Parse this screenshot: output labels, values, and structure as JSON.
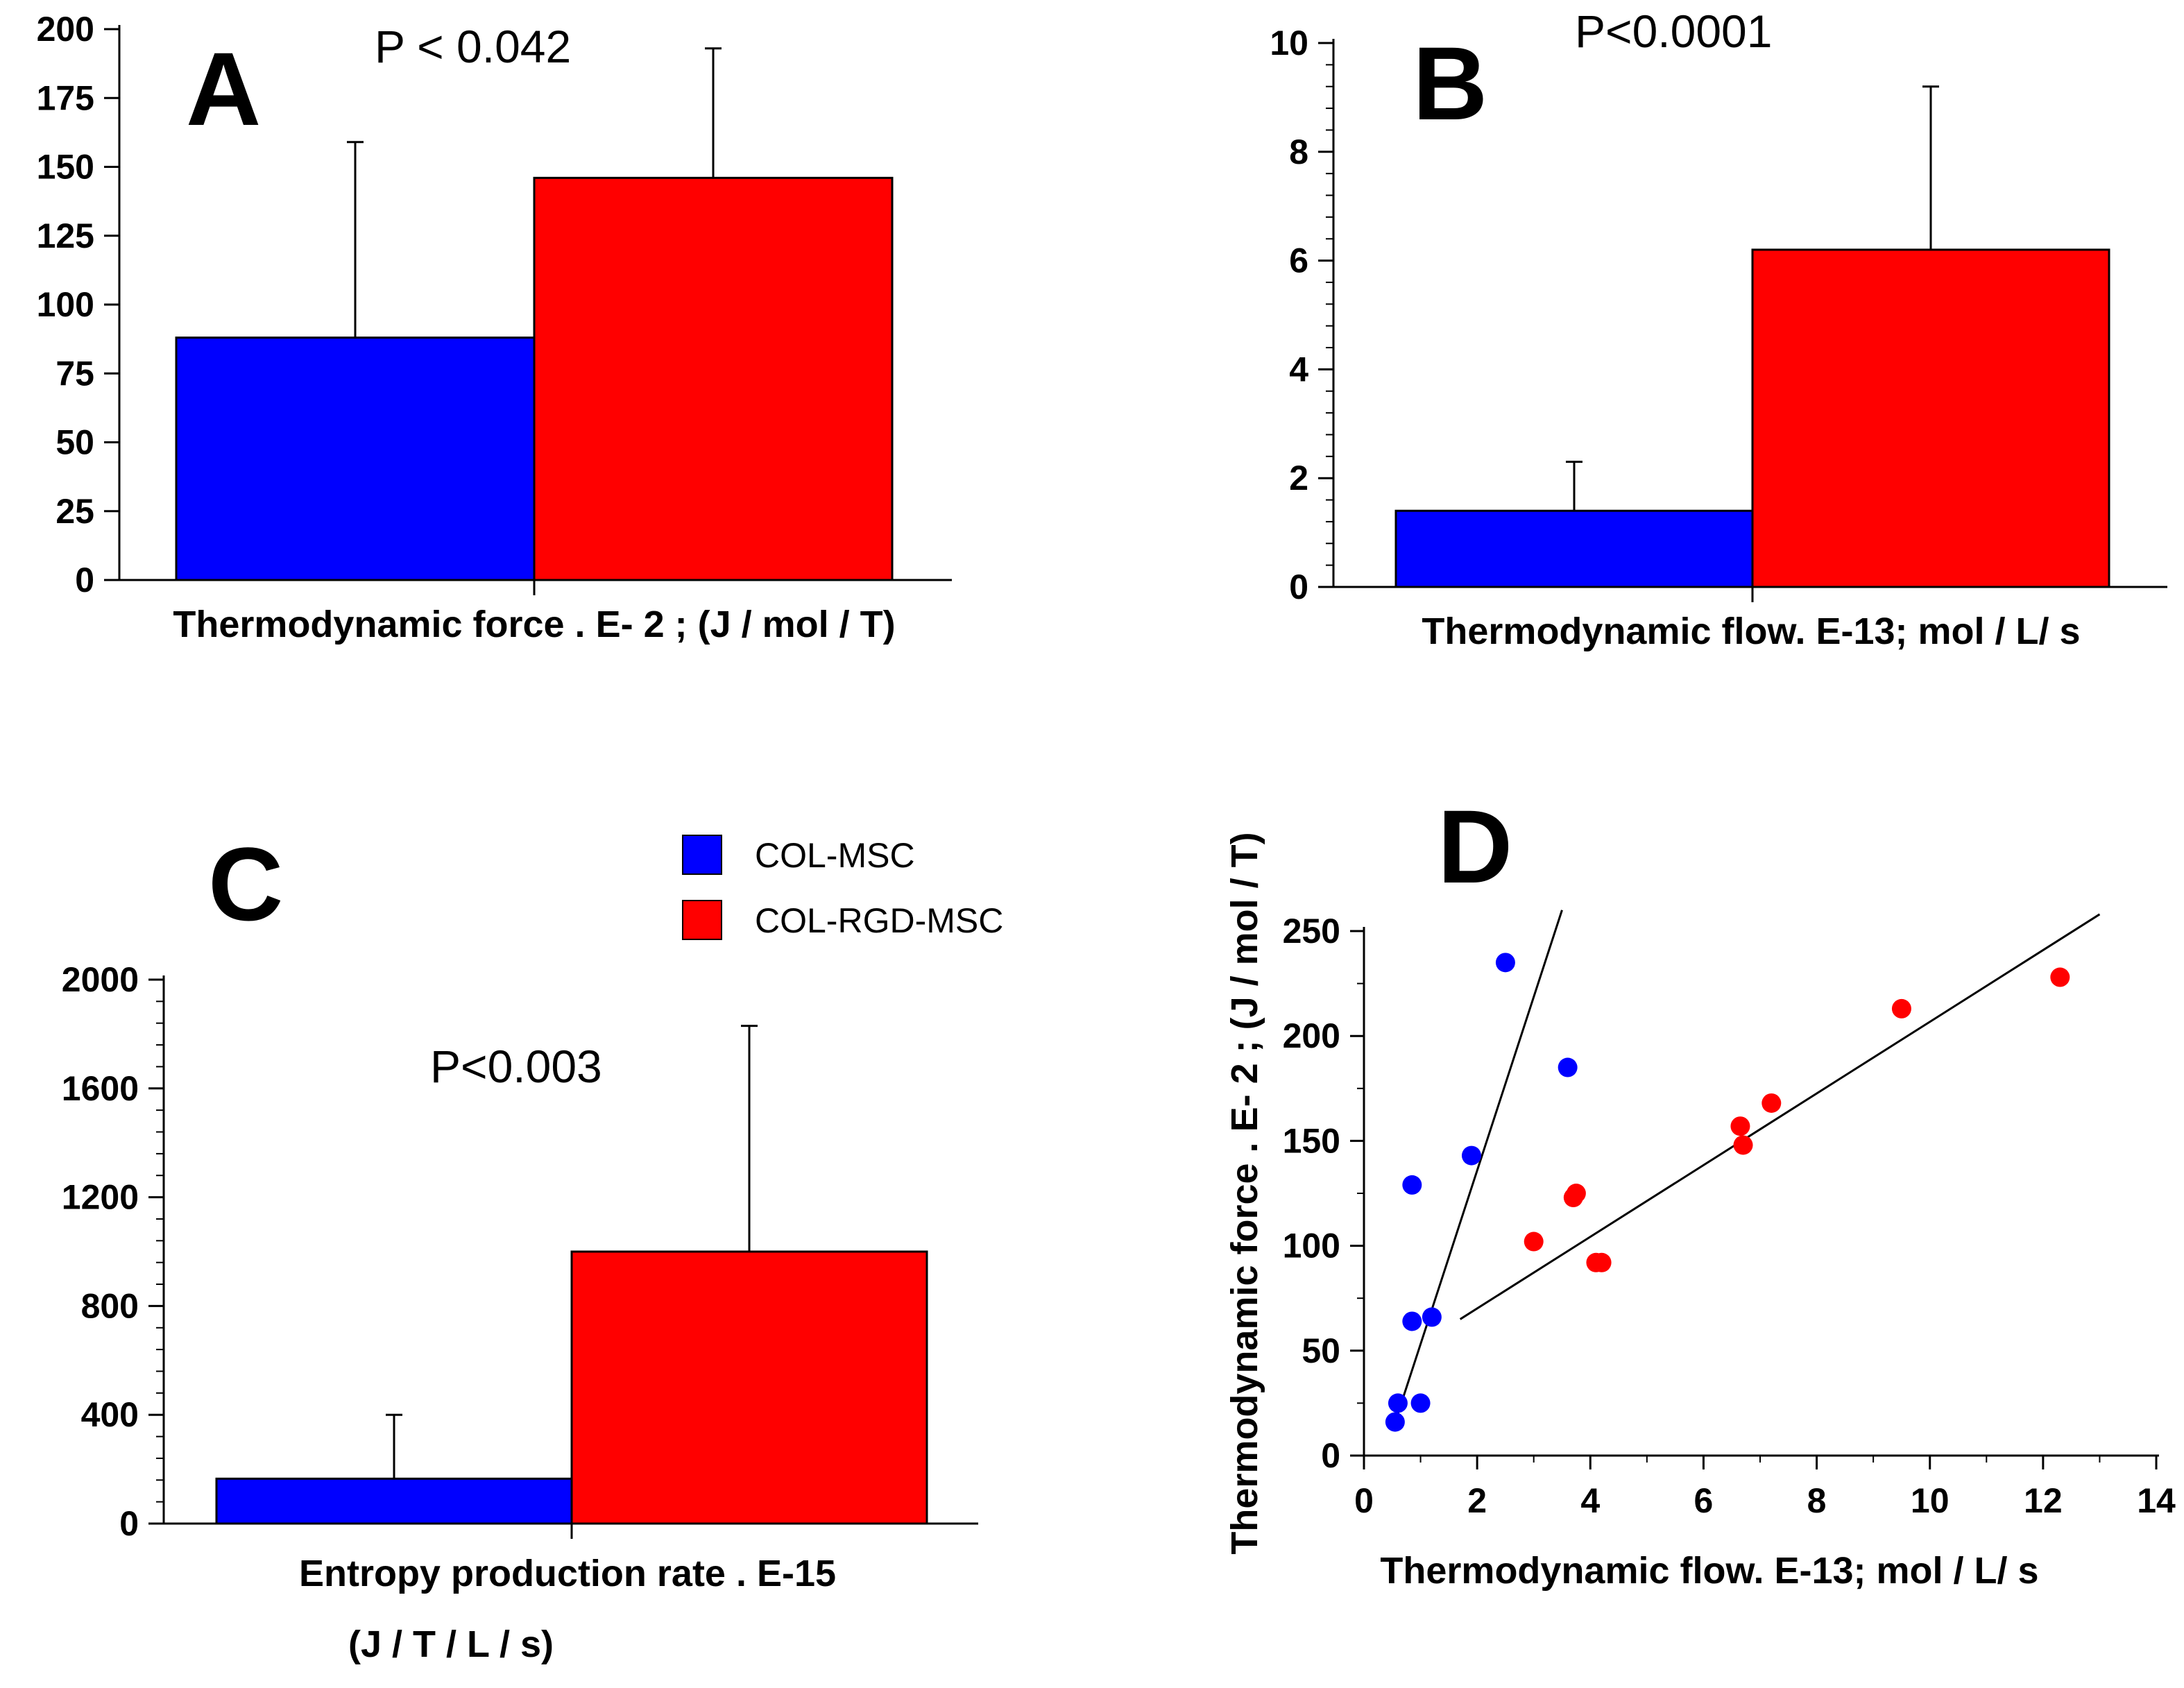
{
  "colors": {
    "col_msc": "#0000ff",
    "col_rgd_msc": "#ff0000",
    "axis": "#000000"
  },
  "legend": [
    {
      "label": "COL-MSC",
      "color": "#0000ff"
    },
    {
      "label": "COL-RGD-MSC",
      "color": "#ff0000"
    }
  ],
  "chart_data": [
    {
      "panel": "A",
      "type": "bar",
      "pvalue": "P < 0.042",
      "xlabel": "Thermodynamic force . E- 2 ; (J / mol / T)",
      "ylim": [
        0,
        200
      ],
      "yticks": [
        0,
        25,
        50,
        75,
        100,
        125,
        150,
        175,
        200
      ],
      "ytick_labels": [
        "0",
        "25",
        "50",
        "75",
        "100",
        "125",
        "150",
        "175",
        "200"
      ],
      "series": [
        {
          "name": "COL-MSC",
          "value": 88,
          "error": 71
        },
        {
          "name": "COL-RGD-MSC",
          "value": 146,
          "error": 47
        }
      ]
    },
    {
      "panel": "B",
      "type": "bar",
      "pvalue": "P<0.0001",
      "xlabel": "Thermodynamic flow. E-13; mol / L/ s",
      "ylim": [
        0,
        10
      ],
      "yticks": [
        0,
        2,
        4,
        6,
        8,
        10
      ],
      "ytick_labels": [
        "0",
        "2",
        "4",
        "6",
        "8",
        "10"
      ],
      "series": [
        {
          "name": "COL-MSC",
          "value": 1.4,
          "error": 0.9
        },
        {
          "name": "COL-RGD-MSC",
          "value": 6.2,
          "error": 3.0
        }
      ]
    },
    {
      "panel": "C",
      "type": "bar",
      "pvalue": "P<0.003",
      "xlabel": "Entropy production rate . E-15",
      "xlabel2": "(J / T / L / s)",
      "ylim": [
        0,
        2000
      ],
      "yticks": [
        0,
        400,
        800,
        1200,
        1600,
        2000
      ],
      "ytick_labels": [
        "0",
        "400",
        "800",
        "1200",
        "1600",
        "2000"
      ],
      "series": [
        {
          "name": "COL-MSC",
          "value": 165,
          "error": 235
        },
        {
          "name": "COL-RGD-MSC",
          "value": 1000,
          "error": 830
        }
      ]
    },
    {
      "panel": "D",
      "type": "scatter",
      "xlabel": "Thermodynamic flow. E-13; mol / L/ s",
      "ylabel": "Thermodynamic force . E- 2 ; (J / mol / T)",
      "xlim": [
        0,
        14
      ],
      "ylim": [
        0,
        250
      ],
      "xticks": [
        0,
        2,
        4,
        6,
        8,
        10,
        12,
        14
      ],
      "xtick_labels": [
        "0",
        "2",
        "4",
        "6",
        "8",
        "10",
        "12",
        "14"
      ],
      "yticks": [
        0,
        50,
        100,
        150,
        200,
        250
      ],
      "ytick_labels": [
        "0",
        "50",
        "100",
        "150",
        "200",
        "250"
      ],
      "series": [
        {
          "name": "COL-MSC",
          "points": [
            [
              2.5,
              235
            ],
            [
              3.6,
              185
            ],
            [
              1.9,
              143
            ],
            [
              0.85,
              129
            ],
            [
              0.85,
              64
            ],
            [
              1.2,
              66
            ],
            [
              0.6,
              25
            ],
            [
              1.0,
              25
            ],
            [
              0.55,
              16
            ]
          ],
          "fit": [
            [
              0.6,
              20
            ],
            [
              3.5,
              260
            ]
          ]
        },
        {
          "name": "COL-RGD-MSC",
          "points": [
            [
              12.3,
              228
            ],
            [
              9.5,
              213
            ],
            [
              7.2,
              168
            ],
            [
              6.65,
              157
            ],
            [
              6.7,
              148
            ],
            [
              3.7,
              123
            ],
            [
              3.75,
              125
            ],
            [
              3.0,
              102
            ],
            [
              4.1,
              92
            ],
            [
              4.2,
              92
            ]
          ],
          "fit": [
            [
              1.7,
              65
            ],
            [
              13.0,
              258
            ]
          ]
        }
      ]
    }
  ]
}
